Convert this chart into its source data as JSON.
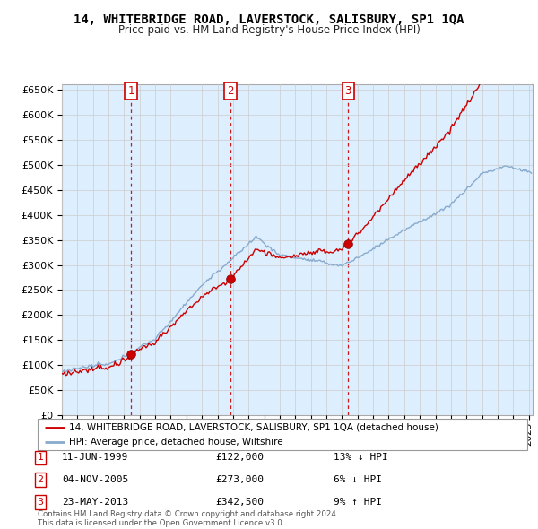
{
  "title": "14, WHITEBRIDGE ROAD, LAVERSTOCK, SALISBURY, SP1 1QA",
  "subtitle": "Price paid vs. HM Land Registry's House Price Index (HPI)",
  "property_label": "14, WHITEBRIDGE ROAD, LAVERSTOCK, SALISBURY, SP1 1QA (detached house)",
  "hpi_label": "HPI: Average price, detached house, Wiltshire",
  "transactions": [
    {
      "num": 1,
      "date": "11-JUN-1999",
      "price": "£122,000",
      "change": "13% ↓ HPI"
    },
    {
      "num": 2,
      "date": "04-NOV-2005",
      "price": "£273,000",
      "change": "6% ↓ HPI"
    },
    {
      "num": 3,
      "date": "23-MAY-2013",
      "price": "£342,500",
      "change": "9% ↑ HPI"
    }
  ],
  "sale_dates": [
    1999.44,
    2005.84,
    2013.39
  ],
  "sale_prices": [
    122000,
    273000,
    342500
  ],
  "property_color": "#cc0000",
  "hpi_color": "#88aacc",
  "chart_bg": "#ddeeff",
  "sale_dot_color": "#cc0000",
  "vline_color": "#cc0000",
  "ylim_max": 660000,
  "yticks": [
    0,
    50000,
    100000,
    150000,
    200000,
    250000,
    300000,
    350000,
    400000,
    450000,
    500000,
    550000,
    600000,
    650000
  ],
  "footer": "Contains HM Land Registry data © Crown copyright and database right 2024.\nThis data is licensed under the Open Government Licence v3.0.",
  "background_color": "#ffffff",
  "grid_color": "#cccccc"
}
